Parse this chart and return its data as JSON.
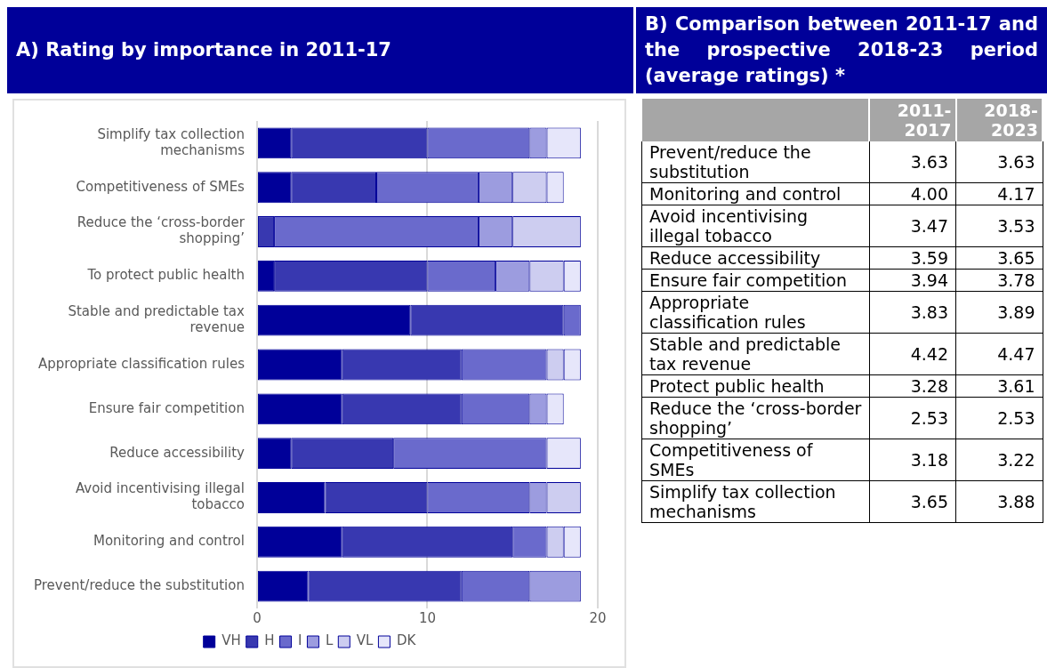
{
  "chart_data": [
    {
      "type": "bar",
      "orientation": "horizontal",
      "stacked": true,
      "title": "A) Rating by importance in 2011-17",
      "categories": [
        "Simplify tax collection mechanisms",
        "Competitiveness of SMEs",
        "Reduce the ‘cross-border shopping’",
        "To protect public health",
        "Stable and predictable tax revenue",
        "Appropriate classification rules",
        "Ensure fair competition",
        "Reduce accessibility",
        "Avoid incentivising illegal tobacco",
        "Monitoring and control",
        "Prevent/reduce the substitution"
      ],
      "series": [
        {
          "name": "VH",
          "color": "#000099",
          "values": [
            2,
            2,
            0,
            1,
            9,
            5,
            5,
            2,
            4,
            5,
            3
          ]
        },
        {
          "name": "H",
          "color": "#3838b0",
          "values": [
            8,
            5,
            1,
            9,
            9,
            7,
            7,
            6,
            6,
            10,
            9
          ]
        },
        {
          "name": "I",
          "color": "#6a6acc",
          "values": [
            6,
            6,
            12,
            4,
            1,
            5,
            4,
            9,
            6,
            2,
            4
          ]
        },
        {
          "name": "L",
          "color": "#9c9cdf",
          "values": [
            1,
            2,
            2,
            2,
            0,
            0,
            1,
            0,
            1,
            0,
            3
          ]
        },
        {
          "name": "VL",
          "color": "#cdcdf0",
          "values": [
            0,
            2,
            4,
            2,
            0,
            1,
            0,
            0,
            2,
            1,
            0
          ]
        },
        {
          "name": "DK",
          "color": "#e6e6fa",
          "values": [
            2,
            1,
            0,
            1,
            0,
            1,
            1,
            2,
            0,
            1,
            0
          ]
        }
      ],
      "xlim": [
        0,
        20
      ],
      "xticks": [
        0,
        10,
        20
      ],
      "grid": "x",
      "legend": "bottom"
    },
    {
      "type": "other",
      "title": "B) Comparison between 2011-17 and the prospective 2018-23 period (average ratings) *",
      "categories": [
        "Prevent/reduce the substitution",
        "Monitoring and control",
        "Avoid incentivising illegal tobacco",
        "Reduce accessibility",
        "Ensure fair competition",
        "Appropriate classification rules",
        "Stable and predictable tax revenue",
        "Protect public health",
        "Reduce the ‘cross-border shopping’",
        "Competitiveness of SMEs",
        "Simplify tax collection mechanisms"
      ],
      "series": [
        {
          "name": "2011-2017",
          "values": [
            3.63,
            4.0,
            3.47,
            3.59,
            3.94,
            3.83,
            4.42,
            3.28,
            2.53,
            3.18,
            3.65
          ],
          "value_labels": [
            "3.63",
            "4.00",
            "3.47",
            "3.59",
            "3.94",
            "3.83",
            "4.42",
            "3.28",
            "2.53",
            "3.18",
            "3.65"
          ]
        },
        {
          "name": "2018-2023",
          "values": [
            3.63,
            4.17,
            3.53,
            3.65,
            3.78,
            3.89,
            4.47,
            3.61,
            2.53,
            3.22,
            3.88
          ],
          "value_labels": [
            "3.63",
            "4.17",
            "3.53",
            "3.65",
            "3.78",
            "3.89",
            "4.47",
            "3.61",
            "2.53",
            "3.22",
            "3.88"
          ]
        }
      ]
    }
  ]
}
